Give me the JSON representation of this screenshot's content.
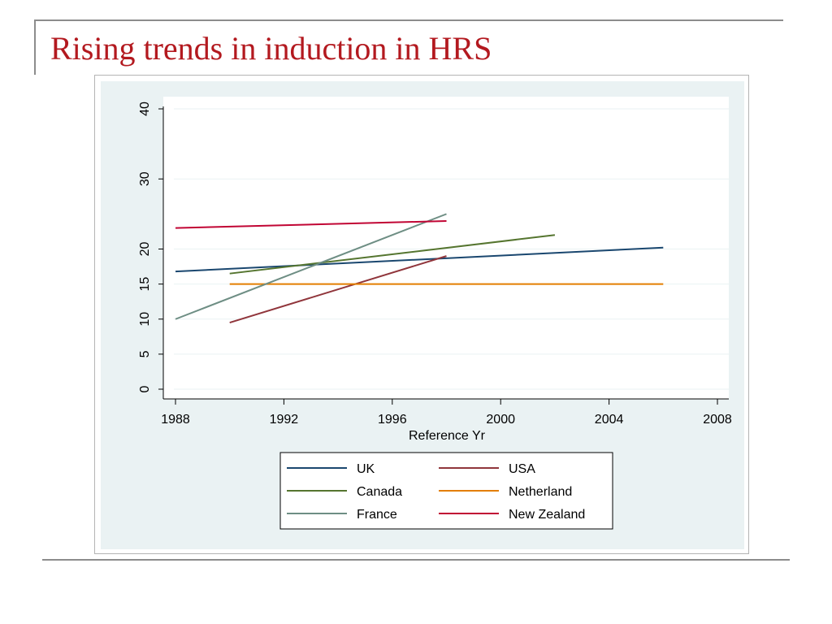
{
  "slide": {
    "title": "Rising trends in induction in HRS"
  },
  "chart_data": {
    "type": "line",
    "title": "",
    "xlabel": "Reference Yr",
    "ylabel": "",
    "xlim": [
      1988,
      2008
    ],
    "ylim": [
      0,
      40
    ],
    "xticks": [
      "1988",
      "1992",
      "1996",
      "2000",
      "2004",
      "2008"
    ],
    "yticks": [
      "0",
      "5",
      "10",
      "15",
      "20",
      "30",
      "40"
    ],
    "grid": true,
    "legend_position": "bottom",
    "series": [
      {
        "name": "UK",
        "color": "#1a476f",
        "x": [
          1988,
          2006
        ],
        "y": [
          16.8,
          20.2
        ]
      },
      {
        "name": "USA",
        "color": "#90353b",
        "x": [
          1990,
          1998
        ],
        "y": [
          9.5,
          19.0
        ]
      },
      {
        "name": "Canada",
        "color": "#55752f",
        "x": [
          1990,
          2002
        ],
        "y": [
          16.5,
          22.0
        ]
      },
      {
        "name": "Netherland",
        "color": "#e37e00",
        "x": [
          1990,
          2006
        ],
        "y": [
          15.0,
          15.0
        ]
      },
      {
        "name": "France",
        "color": "#6e8e84",
        "x": [
          1988,
          1998
        ],
        "y": [
          10.0,
          25.0
        ]
      },
      {
        "name": "New Zealand",
        "color": "#c10534",
        "x": [
          1988,
          1998
        ],
        "y": [
          23.0,
          24.0
        ]
      }
    ]
  }
}
